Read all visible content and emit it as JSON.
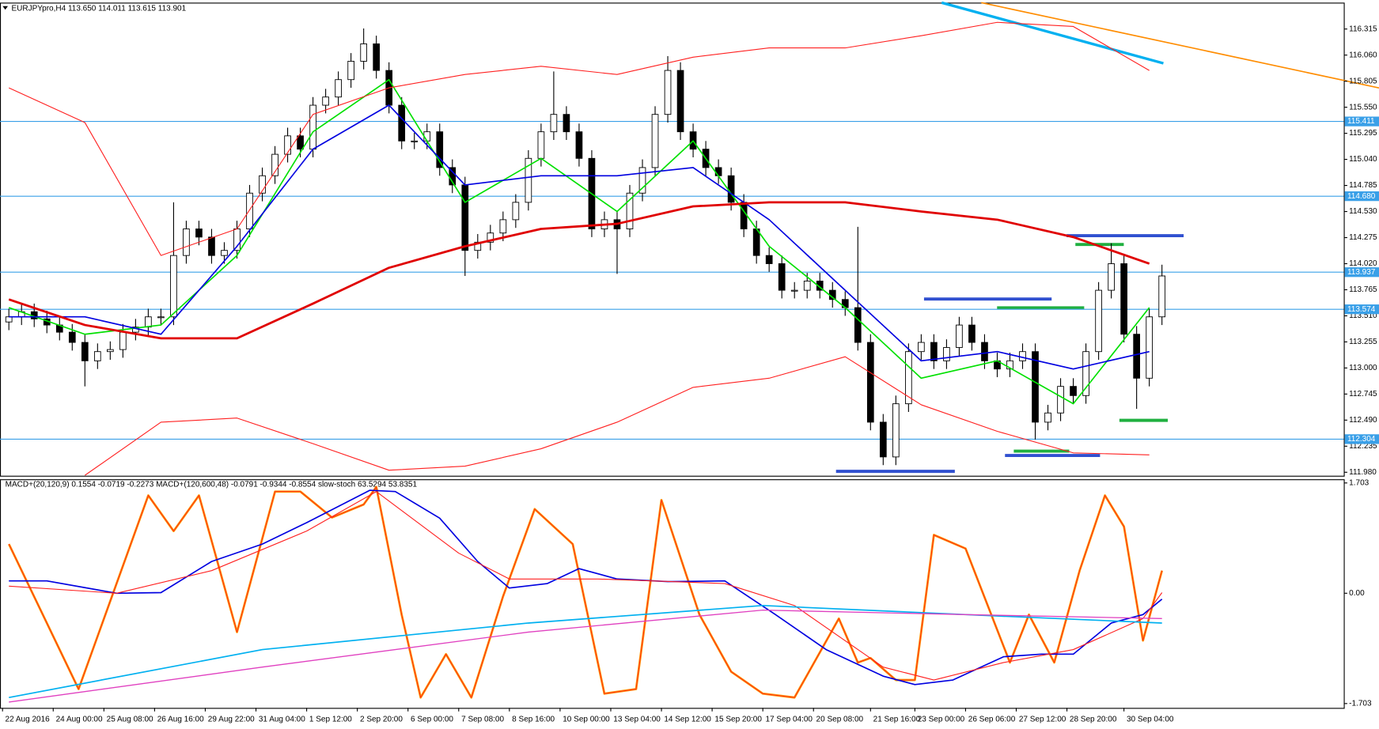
{
  "chart_data": [
    {
      "type": "candlestick",
      "title": "EURJPYpro,H4 113.650 114.011 113.615 113.901",
      "x": [
        0,
        2,
        4,
        6,
        8,
        10,
        12,
        14,
        16,
        18,
        20,
        22,
        24,
        26,
        28,
        30,
        32,
        34,
        36,
        38,
        40,
        42,
        44,
        46,
        48,
        50,
        52,
        54,
        56,
        58,
        60,
        62,
        64,
        66,
        68,
        70,
        72,
        74,
        76,
        78,
        80,
        82,
        84,
        86,
        88,
        90,
        92,
        94,
        96,
        98,
        100,
        102,
        104,
        106,
        108,
        110,
        112,
        114,
        116,
        118,
        120,
        122,
        124,
        126,
        128,
        130,
        132,
        134,
        136,
        138,
        140,
        142,
        144,
        146,
        148,
        150,
        152,
        154,
        156,
        158,
        160,
        162,
        164,
        166,
        168,
        170,
        172,
        174,
        176,
        178,
        180,
        182
      ],
      "open": [
        113.45,
        113.5,
        113.55,
        113.48,
        113.42,
        113.35,
        113.25,
        113.07,
        113.16,
        113.18,
        113.35,
        113.4,
        113.5,
        113.5,
        114.1,
        114.36,
        114.28,
        114.1,
        114.15,
        114.36,
        114.71,
        114.88,
        115.09,
        115.27,
        115.14,
        115.57,
        115.65,
        115.82,
        116.0,
        116.17,
        115.91,
        115.57,
        115.22,
        115.22,
        115.31,
        114.96,
        114.79,
        114.15,
        114.23,
        114.32,
        114.45,
        114.62,
        115.05,
        115.31,
        115.48,
        115.31,
        115.05,
        114.36,
        114.45,
        114.36,
        114.71,
        114.96,
        115.48,
        115.91,
        115.31,
        115.14,
        114.96,
        114.88,
        114.62,
        114.36,
        114.1,
        114.02,
        113.76,
        113.76,
        113.85,
        113.76,
        113.67,
        113.59,
        113.25,
        112.47,
        112.13,
        112.65,
        113.16,
        113.25,
        113.07,
        113.2,
        113.42,
        113.25,
        113.07,
        112.99,
        113.07,
        113.16,
        112.47,
        112.56,
        112.82,
        112.73,
        113.16,
        113.76,
        114.02,
        113.33,
        112.9,
        113.5
      ],
      "high": [
        113.58,
        113.63,
        113.63,
        113.56,
        113.5,
        113.43,
        113.33,
        113.24,
        113.26,
        113.43,
        113.48,
        113.58,
        113.58,
        114.62,
        114.44,
        114.44,
        114.36,
        114.23,
        114.44,
        114.79,
        114.96,
        115.17,
        115.35,
        115.35,
        115.65,
        115.73,
        115.9,
        116.08,
        116.32,
        116.25,
        115.99,
        115.65,
        115.3,
        115.39,
        115.39,
        115.04,
        114.87,
        114.31,
        114.4,
        114.53,
        114.7,
        115.13,
        115.39,
        115.9,
        115.56,
        115.39,
        115.13,
        114.53,
        114.53,
        114.79,
        115.04,
        115.56,
        116.05,
        115.99,
        115.39,
        115.22,
        115.04,
        114.96,
        114.7,
        114.44,
        114.18,
        114.1,
        113.84,
        113.93,
        113.93,
        113.84,
        113.75,
        114.38,
        113.33,
        112.55,
        112.73,
        113.24,
        113.33,
        113.33,
        113.28,
        113.5,
        113.5,
        113.33,
        113.15,
        113.15,
        113.24,
        113.24,
        112.64,
        112.9,
        112.9,
        113.24,
        113.84,
        114.22,
        114.1,
        113.41,
        113.58,
        114.01
      ],
      "low": [
        113.37,
        113.42,
        113.4,
        113.34,
        113.27,
        113.17,
        112.82,
        112.99,
        113.08,
        113.1,
        113.27,
        113.32,
        113.42,
        113.42,
        114.02,
        114.2,
        114.02,
        114.02,
        114.07,
        114.28,
        114.63,
        114.8,
        115.01,
        115.06,
        115.06,
        115.49,
        115.57,
        115.74,
        115.92,
        115.83,
        115.49,
        115.14,
        115.14,
        115.14,
        114.88,
        114.71,
        113.9,
        114.07,
        114.15,
        114.24,
        114.37,
        114.54,
        114.97,
        115.23,
        115.23,
        114.97,
        114.28,
        114.28,
        113.92,
        114.28,
        114.63,
        114.88,
        115.4,
        115.23,
        115.06,
        114.88,
        114.8,
        114.54,
        114.28,
        114.02,
        113.94,
        113.68,
        113.68,
        113.68,
        113.68,
        113.59,
        113.51,
        113.17,
        112.39,
        112.05,
        112.05,
        112.57,
        113.08,
        112.99,
        112.99,
        113.12,
        113.17,
        112.99,
        112.91,
        112.91,
        112.99,
        112.3,
        112.39,
        112.48,
        112.65,
        112.65,
        113.08,
        113.68,
        113.25,
        112.6,
        112.82,
        113.42
      ],
      "close": [
        113.5,
        113.55,
        113.48,
        113.42,
        113.35,
        113.25,
        113.07,
        113.16,
        113.18,
        113.35,
        113.4,
        113.5,
        113.5,
        114.1,
        114.36,
        114.28,
        114.1,
        114.15,
        114.36,
        114.71,
        114.88,
        115.09,
        115.27,
        115.14,
        115.57,
        115.65,
        115.82,
        116.0,
        116.17,
        115.91,
        115.57,
        115.22,
        115.22,
        115.31,
        114.96,
        114.79,
        114.15,
        114.23,
        114.32,
        114.45,
        114.62,
        115.05,
        115.31,
        115.48,
        115.31,
        115.05,
        114.36,
        114.45,
        114.36,
        114.71,
        114.96,
        115.48,
        115.91,
        115.31,
        115.14,
        114.96,
        114.88,
        114.62,
        114.36,
        114.1,
        114.02,
        113.76,
        113.76,
        113.85,
        113.76,
        113.67,
        113.59,
        113.25,
        112.47,
        112.13,
        112.65,
        113.16,
        113.25,
        113.07,
        113.2,
        113.42,
        113.25,
        113.07,
        112.99,
        113.07,
        113.16,
        112.47,
        112.56,
        112.82,
        112.73,
        113.16,
        113.76,
        114.02,
        113.33,
        112.9,
        113.5,
        113.9
      ],
      "up_color": "#ffffff",
      "down_color": "#000000",
      "xlim": [
        -1.4,
        210.7
      ],
      "xticks": [
        {
          "value": -1,
          "label": "22 Aug 2016"
        },
        {
          "value": 7,
          "label": "24 Aug 00:00"
        },
        {
          "value": 15,
          "label": "25 Aug 08:00"
        },
        {
          "value": 23,
          "label": "26 Aug 16:00"
        },
        {
          "value": 31,
          "label": "29 Aug 22:00"
        },
        {
          "value": 39,
          "label": "31 Aug 04:00"
        },
        {
          "value": 47,
          "label": "1 Sep 12:00"
        },
        {
          "value": 55,
          "label": "2 Sep 20:00"
        },
        {
          "value": 63,
          "label": "6 Sep 00:00"
        },
        {
          "value": 71,
          "label": "7 Sep 08:00"
        },
        {
          "value": 79,
          "label": "8 Sep 16:00"
        },
        {
          "value": 87,
          "label": "10 Sep 00:00"
        },
        {
          "value": 95,
          "label": "13 Sep 04:00"
        },
        {
          "value": 103,
          "label": "14 Sep 12:00"
        },
        {
          "value": 111,
          "label": "15 Sep 20:00"
        },
        {
          "value": 119,
          "label": "17 Sep 04:00"
        },
        {
          "value": 127,
          "label": "20 Sep 08:00"
        },
        {
          "value": 136,
          "label": "21 Sep 16:00"
        },
        {
          "value": 143,
          "label": "23 Sep 00:00"
        },
        {
          "value": 151,
          "label": "26 Sep 06:00"
        },
        {
          "value": 159,
          "label": "27 Sep 12:00"
        },
        {
          "value": 167,
          "label": "28 Sep 20:00"
        },
        {
          "value": 176,
          "label": "30 Sep 04:00"
        }
      ],
      "ylim": [
        111.946,
        116.573
      ],
      "yticks": [
        116.315,
        {
          "value": 116.06,
          "label": "116.060"
        },
        115.805,
        {
          "value": 115.55,
          "label": "115.550"
        },
        115.295,
        {
          "value": 115.04,
          "label": "115.040"
        },
        114.785,
        {
          "value": 114.53,
          "label": "114.530"
        },
        114.275,
        {
          "value": 114.02,
          "label": "114.020"
        },
        113.765,
        {
          "value": 113.51,
          "label": "113.510"
        },
        113.255,
        {
          "value": 113,
          "label": "113.000"
        },
        112.745,
        {
          "value": 112.49,
          "label": "112.490"
        },
        112.235,
        {
          "value": 111.98,
          "label": "111.980"
        }
      ],
      "levels": [
        115.411,
        {
          "value": 114.68,
          "label": "114.680"
        },
        113.937,
        113.574,
        112.304
      ],
      "level_color": "#3aa0e8",
      "overlays": [
        {
          "color": "#00e000",
          "width": 1.5,
          "x": [
            0,
            12,
            24,
            36,
            48,
            60,
            72,
            84,
            96,
            108,
            120,
            132,
            144,
            156,
            168,
            180
          ],
          "values": [
            113.59,
            113.33,
            113.42,
            114.1,
            115.31,
            115.82,
            114.62,
            115.05,
            114.53,
            115.22,
            114.19,
            113.59,
            112.9,
            113.07,
            112.65,
            113.59
          ]
        },
        {
          "color": "#0000e0",
          "width": 1.5,
          "x": [
            0,
            12,
            24,
            36,
            48,
            60,
            72,
            84,
            96,
            108,
            120,
            132,
            144,
            156,
            168,
            180
          ],
          "values": [
            113.5,
            113.5,
            113.33,
            114.19,
            115.14,
            115.57,
            114.79,
            114.88,
            114.88,
            114.96,
            114.45,
            113.76,
            113.07,
            113.16,
            112.99,
            113.16
          ]
        },
        {
          "color": "#e00000",
          "width": 2.5,
          "x": [
            0,
            12,
            24,
            36,
            48,
            60,
            72,
            84,
            96,
            108,
            120,
            132,
            144,
            156,
            168,
            180
          ],
          "values": [
            113.67,
            113.42,
            113.29,
            113.29,
            113.63,
            113.98,
            114.19,
            114.36,
            114.41,
            114.58,
            114.62,
            114.62,
            114.53,
            114.45,
            114.28,
            114.02
          ]
        },
        {
          "color": "#ff2020",
          "width": 1,
          "x": [
            0,
            12,
            24,
            36,
            48,
            60,
            72,
            84,
            96,
            108,
            120,
            132,
            144,
            156,
            168,
            180
          ],
          "values": [
            115.74,
            115.4,
            114.1,
            114.36,
            115.48,
            115.74,
            115.87,
            115.95,
            115.87,
            116.04,
            116.13,
            116.13,
            116.25,
            116.38,
            116.34,
            115.91
          ]
        },
        {
          "color": "#ff2020",
          "width": 1,
          "x": [
            0,
            12,
            24,
            36,
            48,
            60,
            72,
            84,
            96,
            108,
            120,
            132,
            144,
            156,
            168,
            180
          ],
          "values": [
            null,
            111.95,
            112.47,
            112.51,
            112.26,
            112.0,
            112.04,
            112.21,
            112.47,
            112.81,
            112.9,
            113.11,
            112.64,
            112.38,
            112.17,
            112.15
          ]
        }
      ]
    },
    {
      "type": "line",
      "title": "MACD+(20,120,9) 0.1554 -0.0719 -0.2273 MACD+(120,600,48) -0.0791 -0.9344 -0.8554 slow-stoch 63.5294 53.8351",
      "xlim": [
        -1.4,
        210.7
      ],
      "ylim": [
        -1.77,
        1.76
      ],
      "yticks": [
        1.703,
        {
          "value": 0,
          "label": "0.00"
        },
        -1.703
      ],
      "series": [
        {
          "color": "#ff9900",
          "width": 2.5,
          "x": [
            0,
            11,
            22,
            26,
            30,
            36,
            42,
            46,
            51,
            56,
            58,
            62,
            65,
            69,
            73,
            78,
            83,
            89,
            94,
            99,
            103,
            109,
            114,
            119,
            124,
            131,
            134,
            136,
            140,
            143,
            146,
            151,
            158,
            161,
            165,
            169,
            173,
            176,
            179,
            182
          ],
          "values": [
            0.76,
            -1.48,
            1.51,
            0.96,
            1.51,
            -0.6,
            1.57,
            1.57,
            1.17,
            1.37,
            1.64,
            -0.33,
            -1.61,
            -0.94,
            -1.61,
            -0.05,
            1.3,
            0.76,
            -1.55,
            -1.48,
            1.44,
            -0.33,
            -1.21,
            -1.55,
            -1.61,
            -0.39,
            -1.07,
            -1.0,
            -1.34,
            -1.34,
            0.9,
            0.69,
            -1.07,
            -0.33,
            -1.07,
            0.35,
            1.51,
            1.03,
            -0.73,
            0.35
          ]
        },
        {
          "color": "#ff2020",
          "width": 0.8,
          "x": [
            0,
            11,
            22,
            26,
            30,
            36,
            42,
            46,
            51,
            56,
            58,
            62,
            65,
            69,
            73,
            78,
            83,
            89,
            94,
            99,
            103,
            109,
            114,
            119,
            124,
            131,
            134,
            136,
            140,
            143,
            146,
            151,
            158,
            161,
            165,
            169,
            173,
            176,
            179,
            182
          ],
          "values": [
            0.76,
            -1.48,
            1.51,
            0.96,
            1.51,
            -0.6,
            1.57,
            1.57,
            1.17,
            1.37,
            1.64,
            -0.33,
            -1.61,
            -0.94,
            -1.61,
            -0.05,
            1.3,
            0.76,
            -1.55,
            -1.48,
            1.44,
            -0.33,
            -1.21,
            -1.55,
            -1.61,
            -0.39,
            -1.07,
            -1.0,
            -1.34,
            -1.34,
            0.9,
            0.69,
            -1.07,
            -0.33,
            -1.07,
            0.35,
            1.51,
            1.03,
            -0.73,
            0.35
          ]
        },
        {
          "color": "#0000e0",
          "width": 1.5,
          "x": [
            0,
            6,
            17,
            24,
            32,
            40,
            47,
            57,
            61,
            68,
            74,
            79,
            85,
            90,
            96,
            104,
            113,
            121,
            129,
            138,
            143,
            149,
            157,
            163,
            168,
            174,
            179,
            182
          ],
          "values": [
            0.19,
            0.19,
            0,
            0.01,
            0.49,
            0.76,
            1.09,
            1.59,
            1.57,
            1.16,
            0.49,
            0.08,
            0.15,
            0.38,
            0.22,
            0.18,
            0.19,
            -0.33,
            -0.87,
            -1.28,
            -1.41,
            -1.34,
            -0.98,
            -0.94,
            -0.94,
            -0.46,
            -0.33,
            -0.09
          ]
        },
        {
          "color": "#ff2020",
          "width": 1,
          "x": [
            0,
            17,
            32,
            47,
            58,
            71,
            79,
            93,
            113,
            124,
            138,
            146,
            157,
            168,
            179,
            182
          ],
          "values": [
            0.11,
            0,
            0.35,
            0.96,
            1.57,
            0.62,
            0.22,
            0.22,
            0.15,
            -0.19,
            -1.14,
            -1.34,
            -1.07,
            -0.87,
            -0.39,
            0.01
          ]
        },
        {
          "color": "#00b0f0",
          "width": 1.5,
          "x": [
            0,
            40,
            82,
            119,
            151,
            182
          ],
          "values": [
            -1.61,
            -0.87,
            -0.46,
            -0.19,
            -0.33,
            -0.46
          ]
        },
        {
          "color": "#e040c0",
          "width": 1.2,
          "x": [
            0,
            40,
            82,
            119,
            151,
            182
          ],
          "values": [
            -1.68,
            -1.14,
            -0.6,
            -0.26,
            -0.33,
            -0.39
          ]
        }
      ]
    }
  ]
}
